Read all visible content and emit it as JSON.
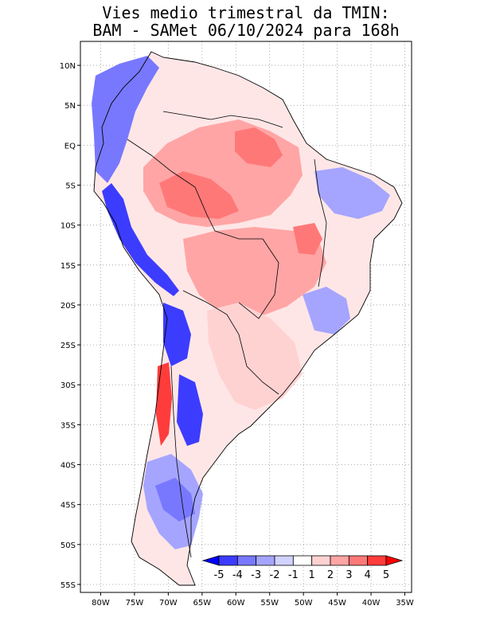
{
  "title_line1": "Vies medio trimestral da TMIN:",
  "title_line2": "BAM - SAMet 06/10/2024  para 168h",
  "map": {
    "lon_range": [
      -83,
      -34
    ],
    "lat_range": [
      -56,
      13
    ],
    "lon_ticks": [
      {
        "lon": -80,
        "label": "80W"
      },
      {
        "lon": -75,
        "label": "75W"
      },
      {
        "lon": -70,
        "label": "70W"
      },
      {
        "lon": -65,
        "label": "65W"
      },
      {
        "lon": -60,
        "label": "60W"
      },
      {
        "lon": -55,
        "label": "55W"
      },
      {
        "lon": -50,
        "label": "50W"
      },
      {
        "lon": -45,
        "label": "45W"
      },
      {
        "lon": -40,
        "label": "40W"
      },
      {
        "lon": -35,
        "label": "35W"
      }
    ],
    "lat_ticks": [
      {
        "lat": 10,
        "label": "10N"
      },
      {
        "lat": 5,
        "label": "5N"
      },
      {
        "lat": 0,
        "label": "EQ"
      },
      {
        "lat": -5,
        "label": "5S"
      },
      {
        "lat": -10,
        "label": "10S"
      },
      {
        "lat": -15,
        "label": "15S"
      },
      {
        "lat": -20,
        "label": "20S"
      },
      {
        "lat": -25,
        "label": "25S"
      },
      {
        "lat": -30,
        "label": "30S"
      },
      {
        "lat": -35,
        "label": "35S"
      },
      {
        "lat": -40,
        "label": "40S"
      },
      {
        "lat": -45,
        "label": "45S"
      },
      {
        "lat": -50,
        "label": "50S"
      },
      {
        "lat": -55,
        "label": "55S"
      }
    ]
  },
  "colorbar": {
    "colors": [
      "#0000ff",
      "#3c3cff",
      "#7878ff",
      "#a5a5ff",
      "#d2d2ff",
      "#ffffff",
      "#ffd2d2",
      "#ffa5a5",
      "#ff7878",
      "#ff3c3c",
      "#ff0000"
    ],
    "labels": [
      "-5",
      "-4",
      "-3",
      "-2",
      "-1",
      "1",
      "2",
      "3",
      "4",
      "5"
    ]
  }
}
